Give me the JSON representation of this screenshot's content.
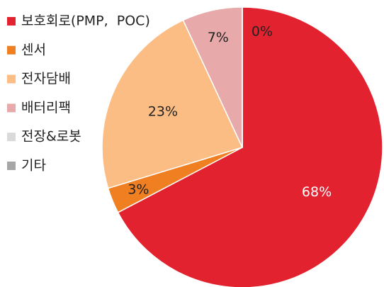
{
  "chart_data": {
    "type": "pie",
    "categories": [
      "보호회로(PMP,  POC)",
      "센서",
      "전자담배",
      "배터리팩",
      "전장&로봇",
      "기타"
    ],
    "values": [
      68,
      3,
      23,
      7,
      0,
      0
    ],
    "value_labels": [
      "68%",
      "3%",
      "23%",
      "7%",
      "0%",
      null
    ],
    "colors": [
      "#e3222f",
      "#f07f21",
      "#fbbd84",
      "#e8a9aa",
      "#d9d9d9",
      "#a6a6a6"
    ],
    "legend": "upper left"
  }
}
